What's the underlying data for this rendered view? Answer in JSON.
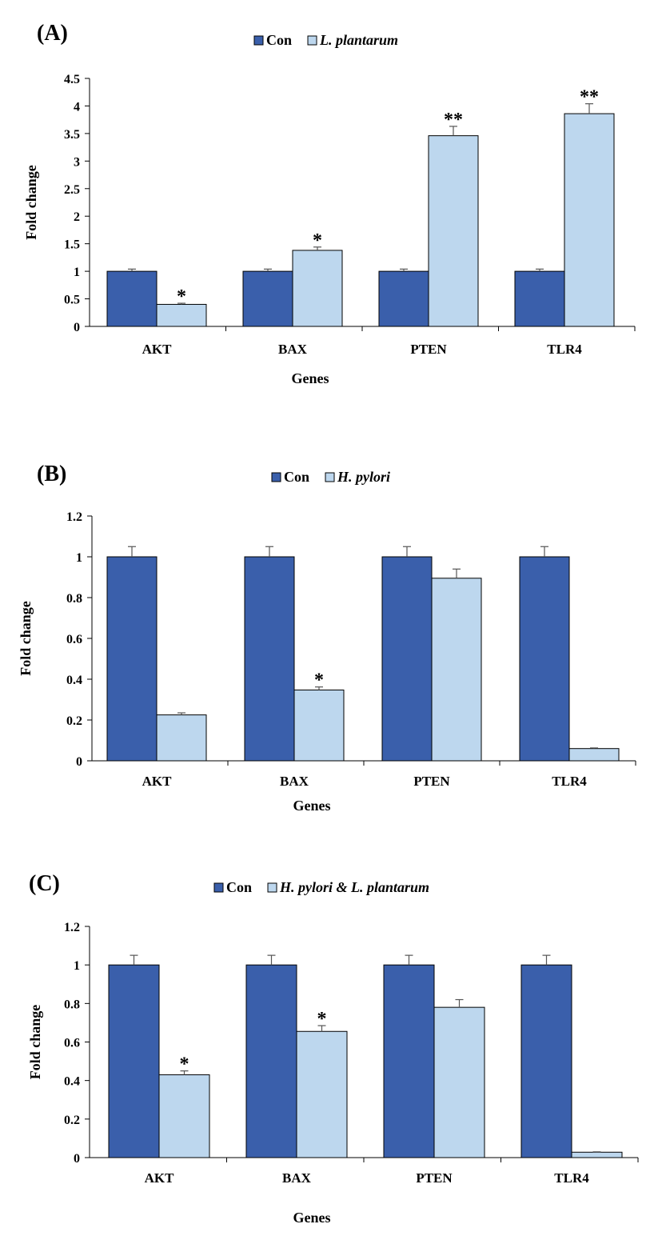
{
  "colors": {
    "con": "#3a5fab",
    "treated": "#bdd7ee",
    "stroke": "#000000",
    "err": "#555555"
  },
  "chart_data": [
    {
      "type": "bar",
      "panel": "(A)",
      "categories": [
        "AKT",
        "BAX",
        "PTEN",
        "TLR4"
      ],
      "series": [
        {
          "name": "Con",
          "values": [
            1,
            1,
            1,
            1
          ],
          "errors": [
            0.04,
            0.04,
            0.04,
            0.04
          ]
        },
        {
          "name": "L. plantarum",
          "values": [
            0.4,
            1.38,
            3.46,
            3.86
          ],
          "errors": [
            0.02,
            0.06,
            0.17,
            0.18
          ]
        }
      ],
      "significance": [
        "*",
        "*",
        "**",
        "**"
      ],
      "ylabel": "Fold change",
      "xlabel": "Genes",
      "ylim": [
        0,
        4.5
      ],
      "yticks": [
        "0",
        "0.5",
        "1",
        "1.5",
        "2",
        "2.5",
        "3",
        "3.5",
        "4",
        "4.5"
      ],
      "legend": "top-center"
    },
    {
      "type": "bar",
      "panel": "(B)",
      "categories": [
        "AKT",
        "BAX",
        "PTEN",
        "TLR4"
      ],
      "series": [
        {
          "name": "Con",
          "values": [
            1,
            1,
            1,
            1
          ],
          "errors": [
            0.05,
            0.05,
            0.05,
            0.05
          ]
        },
        {
          "name": "H. pylori",
          "values": [
            0.225,
            0.347,
            0.895,
            0.06
          ],
          "errors": [
            0.01,
            0.015,
            0.045,
            0.003
          ]
        }
      ],
      "significance": [
        "",
        "*",
        "",
        ""
      ],
      "ylabel": "Fold change",
      "xlabel": "Genes",
      "ylim": [
        0,
        1.2
      ],
      "yticks": [
        "0",
        "0.2",
        "0.4",
        "0.6",
        "0.8",
        "1",
        "1.2"
      ],
      "legend": "top-center"
    },
    {
      "type": "bar",
      "panel": "(C)",
      "categories": [
        "AKT",
        "BAX",
        "PTEN",
        "TLR4"
      ],
      "series": [
        {
          "name": "Con",
          "values": [
            1,
            1,
            1,
            1
          ],
          "errors": [
            0.05,
            0.05,
            0.05,
            0.05
          ]
        },
        {
          "name": "H. pylori & L. plantarum",
          "values": [
            0.43,
            0.655,
            0.78,
            0.028
          ],
          "errors": [
            0.02,
            0.03,
            0.04,
            0.002
          ]
        }
      ],
      "significance": [
        "*",
        "*",
        "",
        ""
      ],
      "ylabel": "Fold change",
      "xlabel": "Genes",
      "ylim": [
        0,
        1.2
      ],
      "yticks": [
        "0",
        "0.2",
        "0.4",
        "0.6",
        "0.8",
        "1",
        "1.2"
      ],
      "legend": "top-center"
    }
  ]
}
